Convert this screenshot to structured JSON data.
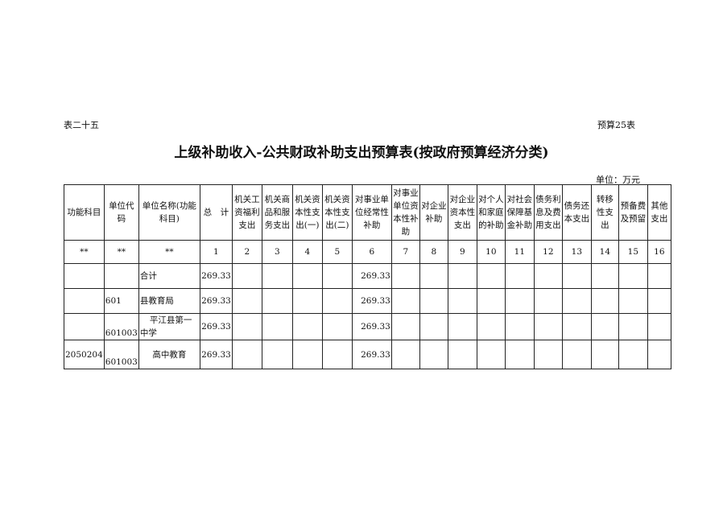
{
  "top_left": "表二十五",
  "top_right": "预算25表",
  "title": "上级补助收入-公共财政补助支出预算表(按政府预算经济分类)",
  "unit": "单位：万元",
  "headers": [
    "功能科目",
    "单位代码",
    "单位名称(功能科目)",
    "总　计",
    "机关工资福利支出",
    "机关商品和服务支出",
    "机关资本性支出(一)",
    "机关资本性支出(二)",
    "对事业单位经常性补助",
    "对事业单位资本性补助",
    "对企业补助",
    "对企业资本性支出",
    "对个人和家庭的补助",
    "对社会保障基金补助",
    "债务利息及费用支出",
    "债务还本支出",
    "转移性支出",
    "预备费及预留",
    "其他支出"
  ],
  "index_row": [
    "**",
    "**",
    "**",
    "1",
    "2",
    "3",
    "4",
    "5",
    "6",
    "7",
    "8",
    "9",
    "10",
    "11",
    "12",
    "13",
    "14",
    "15",
    "16"
  ],
  "rows": [
    {
      "func": "",
      "code": "",
      "name": "合计",
      "total": "269.33",
      "c6": "269.33"
    },
    {
      "func": "",
      "code": "601",
      "name": "县教育局",
      "total": "269.33",
      "c6": "269.33"
    },
    {
      "func": "",
      "code": "601003",
      "name": "平江县第一中学",
      "total": "269.33",
      "c6": "269.33"
    },
    {
      "func": "2050204",
      "code": "601003",
      "name": "高中教育",
      "total": "269.33",
      "c6": "269.33"
    }
  ]
}
